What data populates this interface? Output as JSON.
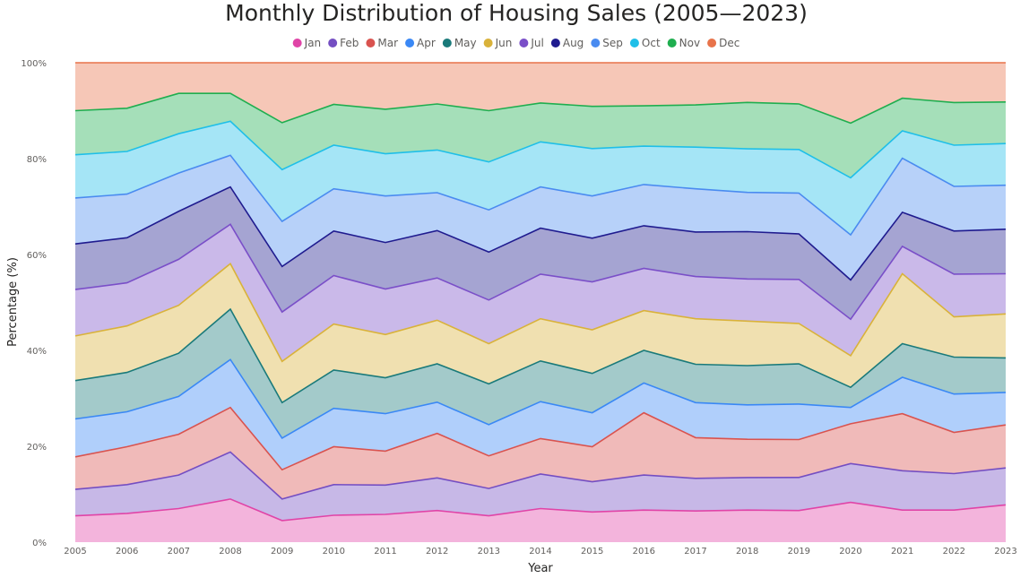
{
  "chart_data": {
    "type": "area",
    "stacked_percent": true,
    "title": "Monthly Distribution of Housing Sales (2005—2023)",
    "xlabel": "Year",
    "ylabel": "Percentage (%)",
    "ylim": [
      0,
      100
    ],
    "y_ticks": [
      "0%",
      "20%",
      "40%",
      "60%",
      "80%",
      "100%"
    ],
    "legend_position": "top-center",
    "x": [
      "2005",
      "2006",
      "2007",
      "2008",
      "2009",
      "2010",
      "2011",
      "2012",
      "2013",
      "2014",
      "2015",
      "2016",
      "2017",
      "2018",
      "2019",
      "2020",
      "2021",
      "2022",
      "2023"
    ],
    "series": [
      {
        "name": "Jan",
        "color": "#e044a7",
        "values": [
          5.5,
          6.0,
          7.0,
          9.0,
          4.5,
          5.6,
          5.8,
          6.6,
          5.5,
          7.0,
          6.3,
          6.7,
          6.5,
          6.7,
          6.6,
          8.3,
          6.7,
          6.7,
          7.8
        ]
      },
      {
        "name": "Feb",
        "color": "#744ec2",
        "values": [
          5.5,
          6.0,
          7.0,
          9.8,
          4.5,
          6.4,
          6.1,
          6.8,
          5.7,
          7.2,
          6.3,
          7.3,
          6.8,
          6.8,
          6.9,
          8.1,
          8.2,
          7.6,
          7.7
        ]
      },
      {
        "name": "Mar",
        "color": "#d9534f",
        "values": [
          6.8,
          7.9,
          8.5,
          9.3,
          6.1,
          7.9,
          7.1,
          9.3,
          6.8,
          7.4,
          7.3,
          13.0,
          8.5,
          8.0,
          7.9,
          8.3,
          11.9,
          8.6,
          9.0
        ]
      },
      {
        "name": "Apr",
        "color": "#3a88f5",
        "values": [
          7.9,
          7.3,
          7.9,
          10.0,
          6.6,
          8.0,
          7.8,
          6.5,
          6.5,
          7.7,
          7.1,
          6.2,
          7.3,
          7.2,
          7.4,
          3.4,
          7.6,
          8.0,
          6.8
        ]
      },
      {
        "name": "May",
        "color": "#1a7a7a",
        "values": [
          8.0,
          8.2,
          9.0,
          10.5,
          7.4,
          8.0,
          7.5,
          8.0,
          8.5,
          8.5,
          8.2,
          6.8,
          8.0,
          8.2,
          8.4,
          4.2,
          7.0,
          7.7,
          7.2
        ]
      },
      {
        "name": "Jun",
        "color": "#d9b23a",
        "values": [
          9.3,
          9.7,
          10.0,
          9.5,
          8.6,
          9.6,
          9.0,
          9.1,
          8.4,
          8.8,
          9.1,
          8.3,
          9.5,
          9.3,
          8.4,
          6.6,
          14.6,
          8.4,
          9.2
        ]
      },
      {
        "name": "Jul",
        "color": "#7a4fc8",
        "values": [
          9.7,
          9.0,
          9.6,
          8.2,
          10.3,
          10.1,
          9.5,
          8.8,
          9.1,
          9.3,
          10.0,
          8.8,
          8.8,
          8.8,
          9.2,
          7.6,
          5.7,
          8.9,
          8.4
        ]
      },
      {
        "name": "Aug",
        "color": "#1f1b8f",
        "values": [
          9.5,
          9.4,
          10.0,
          7.8,
          9.5,
          9.3,
          9.7,
          9.9,
          10.0,
          9.6,
          9.1,
          8.9,
          9.3,
          9.9,
          9.5,
          8.2,
          7.1,
          9.0,
          9.3
        ]
      },
      {
        "name": "Sep",
        "color": "#4a8bf0",
        "values": [
          9.6,
          9.1,
          8.0,
          6.6,
          9.4,
          8.8,
          9.7,
          7.9,
          8.8,
          8.6,
          8.8,
          8.6,
          9.0,
          8.2,
          8.5,
          9.4,
          11.3,
          9.3,
          9.2
        ]
      },
      {
        "name": "Oct",
        "color": "#1fbfe8",
        "values": [
          9.0,
          8.9,
          8.2,
          7.1,
          10.8,
          9.1,
          8.8,
          8.9,
          10.0,
          9.4,
          9.9,
          8.0,
          8.7,
          9.1,
          9.1,
          11.9,
          5.7,
          8.6,
          8.7
        ]
      },
      {
        "name": "Nov",
        "color": "#1fae4f",
        "values": [
          9.2,
          9.0,
          8.4,
          5.8,
          9.8,
          8.5,
          9.3,
          9.6,
          10.7,
          8.1,
          8.8,
          8.4,
          8.8,
          9.7,
          9.5,
          11.4,
          6.8,
          8.9,
          8.7
        ]
      },
      {
        "name": "Dec",
        "color": "#e8734a",
        "values": [
          10.0,
          9.5,
          6.4,
          6.4,
          12.5,
          8.7,
          9.7,
          8.6,
          10.0,
          8.4,
          9.1,
          9.0,
          8.8,
          8.3,
          8.6,
          12.6,
          7.4,
          8.3,
          8.2
        ]
      }
    ]
  }
}
